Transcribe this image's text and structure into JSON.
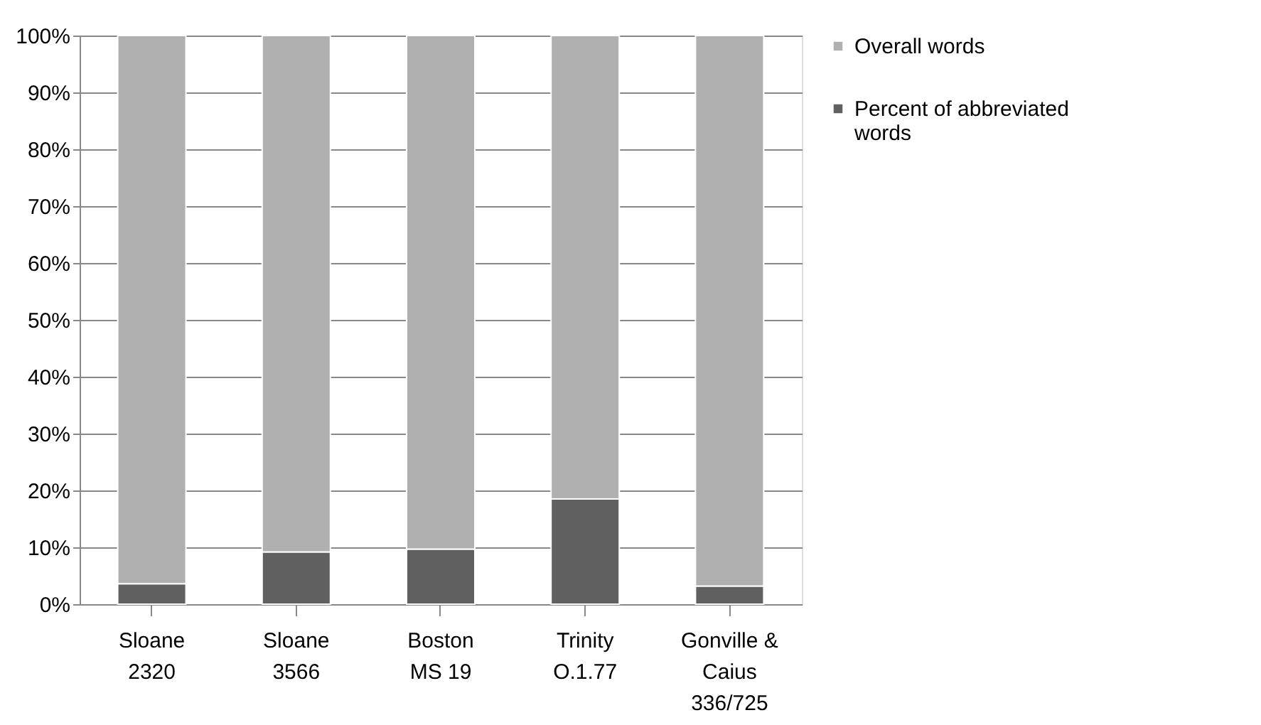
{
  "chart_data": {
    "type": "bar",
    "stacked": true,
    "categories": [
      "Sloane\n2320",
      "Sloane\n3566",
      "Boston\nMS 19",
      "Trinity\nO.1.77",
      "Gonville &\nCaius\n336/725"
    ],
    "series": [
      {
        "name": "Percent of abbreviated\nwords",
        "color": "#606060",
        "values": [
          3.6,
          9.2,
          9.7,
          18.5,
          3.2
        ]
      },
      {
        "name": "Overall words",
        "color": "#b0b0b0",
        "values": [
          96.4,
          90.8,
          90.3,
          81.5,
          96.8
        ]
      }
    ],
    "ylim": [
      0,
      100
    ],
    "yticks": [
      {
        "value": 0,
        "label": "0%"
      },
      {
        "value": 10,
        "label": "10%"
      },
      {
        "value": 20,
        "label": "20%"
      },
      {
        "value": 30,
        "label": "30%"
      },
      {
        "value": 40,
        "label": "40%"
      },
      {
        "value": 50,
        "label": "50%"
      },
      {
        "value": 60,
        "label": "60%"
      },
      {
        "value": 70,
        "label": "70%"
      },
      {
        "value": 80,
        "label": "80%"
      },
      {
        "value": 90,
        "label": "90%"
      },
      {
        "value": 100,
        "label": "100%"
      }
    ],
    "grid": "y",
    "legend": "right"
  }
}
